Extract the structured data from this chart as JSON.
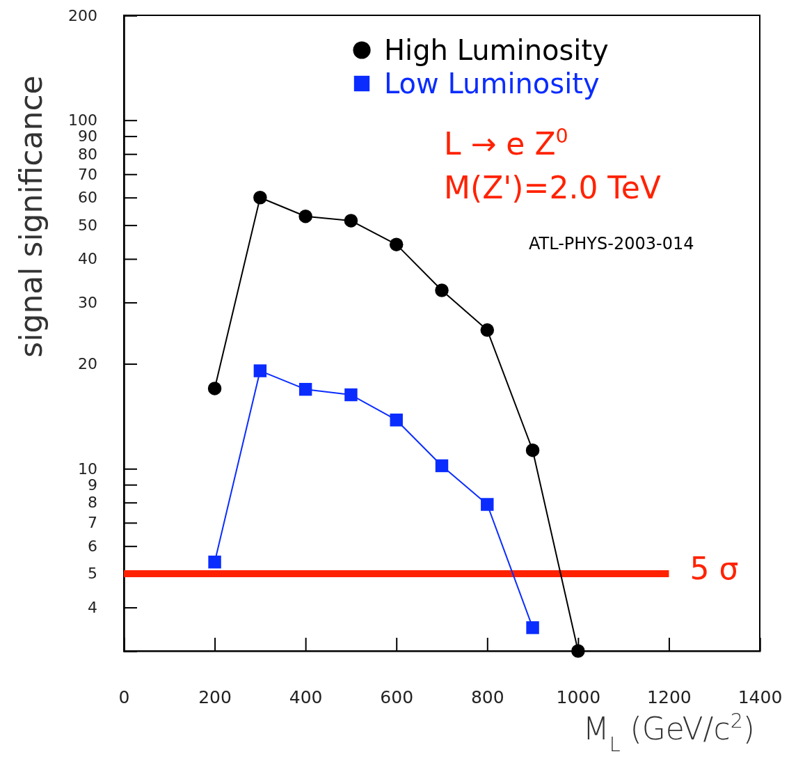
{
  "chart_data": {
    "type": "line",
    "xlabel": "M$_{L}$ (GeV/c$^{2}$)",
    "ylabel": "signal significance",
    "x": [
      200,
      300,
      400,
      500,
      600,
      700,
      800,
      900,
      1000
    ],
    "series": [
      {
        "name": "High Luminosity",
        "color": "#000000",
        "marker": "circle",
        "values": [
          17.0,
          60,
          53,
          51.5,
          44,
          32.5,
          25,
          11.3,
          3.0
        ]
      },
      {
        "name": "Low Luminosity",
        "color": "#0a2cff",
        "marker": "square",
        "values": [
          5.4,
          19.1,
          16.9,
          16.3,
          13.8,
          10.2,
          7.9,
          3.5,
          null
        ]
      }
    ],
    "xlim": [
      0,
      1400
    ],
    "xticks": [
      0,
      200,
      400,
      600,
      800,
      1000,
      1200,
      1400
    ],
    "ylim": [
      3,
      200
    ],
    "yticks": [
      4,
      5,
      6,
      7,
      8,
      9,
      10,
      20,
      30,
      40,
      50,
      60,
      70,
      80,
      90,
      100,
      200
    ],
    "log": "y",
    "legend": "top right",
    "ref_lines": [
      {
        "axis": "y",
        "value": 5,
        "label": "5 σ",
        "color": "#ff2200"
      }
    ],
    "annotations": [
      "L → e Z$^{0}$",
      "M(Z')=2.0 TeV",
      "ATL-PHYS-2003-014"
    ]
  }
}
